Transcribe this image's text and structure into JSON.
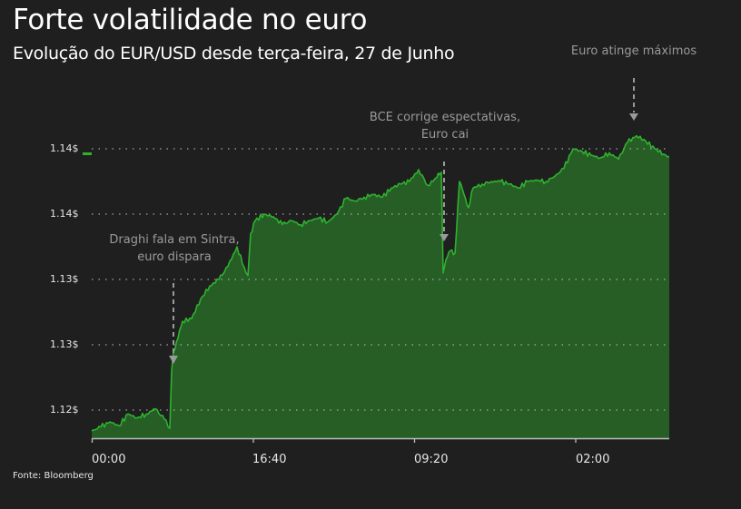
{
  "header": {
    "title": "Forte volatilidade no euro",
    "subtitle": "Evolução do EUR/USD desde terça-feira, 27 de Junho"
  },
  "footer": {
    "source": "Fonte: Bloomberg"
  },
  "colors": {
    "background": "#1f1f1f",
    "line": "#2fb12f",
    "fill": "#265e26",
    "grid": "#bdbdbd",
    "annotation": "#9a9a9a",
    "legend_swatch": "#2fb12f"
  },
  "y_axis": {
    "ticks": [
      {
        "label": "1.14$",
        "value": 1.145
      },
      {
        "label": "1.14$",
        "value": 1.14
      },
      {
        "label": "1.13$",
        "value": 1.135
      },
      {
        "label": "1.13$",
        "value": 1.13
      },
      {
        "label": "1.12$",
        "value": 1.125
      }
    ]
  },
  "x_axis": {
    "ticks": [
      "00:00",
      "16:40",
      "09:20",
      "02:00"
    ]
  },
  "annotations": [
    {
      "line1": "Draghi fala em Sintra,",
      "line2": "euro dispara"
    },
    {
      "line1": "BCE corrige espectativas,",
      "line2": "Euro cai"
    },
    {
      "line1": "Euro atinge máximos",
      "line2": ""
    }
  ],
  "chart_data": {
    "type": "area",
    "title": "Forte volatilidade no euro",
    "subtitle": "Evolução do EUR/USD desde terça-feira, 27 de Junho",
    "xlabel": "",
    "ylabel": "EUR/USD",
    "ylim": [
      1.123,
      1.1465
    ],
    "grid": true,
    "legend": "none",
    "x_tick_labels": [
      "00:00",
      "16:40",
      "09:20",
      "02:00"
    ],
    "y_tick_labels": [
      "1.12$",
      "1.13$",
      "1.13$",
      "1.14$",
      "1.14$"
    ],
    "y_tick_values": [
      1.125,
      1.13,
      1.135,
      1.14,
      1.145
    ],
    "x_index": [
      0,
      10,
      20,
      30,
      40,
      50,
      60,
      70,
      80,
      86,
      88,
      90,
      95,
      100,
      110,
      120,
      130,
      140,
      150,
      160,
      170,
      172,
      175,
      180,
      190,
      200,
      210,
      220,
      230,
      240,
      250,
      260,
      270,
      280,
      290,
      300,
      310,
      320,
      330,
      340,
      350,
      360,
      370,
      380,
      385,
      387,
      390,
      395,
      400,
      405,
      410,
      415,
      420,
      430,
      440,
      450,
      460,
      470,
      480,
      490,
      500,
      510,
      520,
      530,
      540,
      550,
      560,
      570,
      580,
      590,
      600,
      610,
      620,
      630,
      636
    ],
    "values": [
      1.1234,
      1.1237,
      1.1241,
      1.1238,
      1.1247,
      1.1244,
      1.1247,
      1.1251,
      1.1243,
      1.1236,
      1.128,
      1.1295,
      1.1305,
      1.1318,
      1.132,
      1.1335,
      1.1345,
      1.135,
      1.136,
      1.1375,
      1.1355,
      1.1353,
      1.1385,
      1.1395,
      1.14,
      1.1398,
      1.1392,
      1.1395,
      1.1392,
      1.1395,
      1.1397,
      1.1394,
      1.14,
      1.1412,
      1.141,
      1.1413,
      1.1415,
      1.1413,
      1.142,
      1.1423,
      1.1425,
      1.1434,
      1.1422,
      1.1428,
      1.1432,
      1.1355,
      1.1365,
      1.1372,
      1.137,
      1.1425,
      1.1415,
      1.1405,
      1.142,
      1.1423,
      1.1425,
      1.1425,
      1.1423,
      1.142,
      1.1425,
      1.1426,
      1.1425,
      1.1429,
      1.1435,
      1.145,
      1.1448,
      1.1445,
      1.1443,
      1.1447,
      1.1442,
      1.1455,
      1.146,
      1.1456,
      1.145,
      1.1446,
      1.1444
    ]
  }
}
